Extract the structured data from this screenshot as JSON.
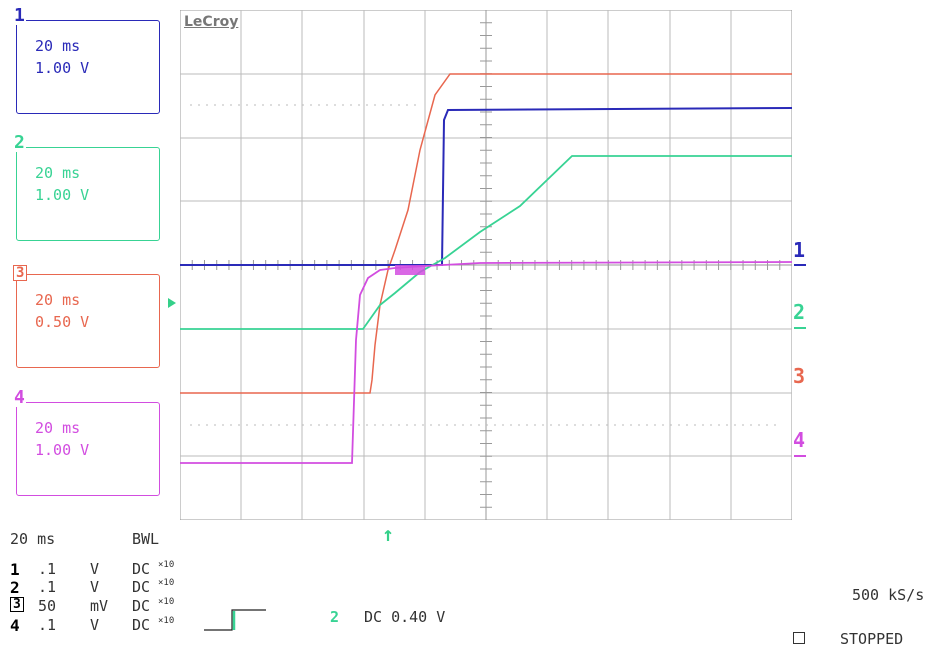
{
  "channels": [
    {
      "num": "1",
      "timebase": "20 ms",
      "scale": "1.00 V",
      "color": "#2a2ab8",
      "boxed": false
    },
    {
      "num": "2",
      "timebase": "20 ms",
      "scale": "1.00 V",
      "color": "#38d394",
      "boxed": false
    },
    {
      "num": "3",
      "timebase": "20 ms",
      "scale": "0.50 V",
      "color": "#e8674f",
      "boxed": true
    },
    {
      "num": "4",
      "timebase": "20 ms",
      "scale": "1.00 V",
      "color": "#d24de0",
      "boxed": false
    }
  ],
  "scope": {
    "brand": "LeCroy",
    "markers": [
      "1",
      "2",
      "3",
      "4"
    ]
  },
  "status": {
    "timebase": "20 ms",
    "bwl": "BWL",
    "rows": [
      {
        "num": "1",
        "value": ".1",
        "unit": "V",
        "coupling": "DC",
        "probe": "×10"
      },
      {
        "num": "2",
        "value": ".1",
        "unit": "V",
        "coupling": "DC",
        "probe": "×10"
      },
      {
        "num": "3",
        "value": "50",
        "unit": "mV",
        "coupling": "DC",
        "probe": "×10"
      },
      {
        "num": "4",
        "value": ".1",
        "unit": "V",
        "coupling": "DC",
        "probe": "×10"
      }
    ],
    "trigger_channel": "2",
    "trigger_level": "DC 0.40 V",
    "sample_rate": "500 kS/s",
    "state": "STOPPED"
  }
}
